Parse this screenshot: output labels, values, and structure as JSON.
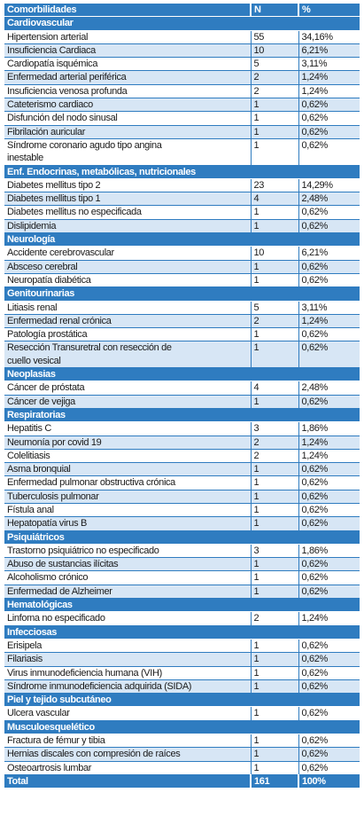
{
  "table": {
    "header": [
      "Comorbilidades",
      "N",
      "%"
    ],
    "sections": [
      {
        "title": "Cardiovascular",
        "rows": [
          [
            "Hipertension arterial",
            "55",
            "34,16%"
          ],
          [
            "Insuficiencia Cardiaca",
            "10",
            "6,21%"
          ],
          [
            "Cardiopatía isquémica",
            "5",
            "3,11%"
          ],
          [
            "Enfermedad arterial periférica",
            "2",
            "1,24%"
          ],
          [
            "Insuficiencia venosa profunda",
            "2",
            "1,24%"
          ],
          [
            "Cateterismo cardiaco",
            "1",
            "0,62%"
          ],
          [
            "Disfunción del nodo sinusal",
            "1",
            "0,62%"
          ],
          [
            "Fibrilación auricular",
            "1",
            "0,62%"
          ],
          [
            "Síndrome coronario agudo tipo angina inestable",
            "1",
            "0,62%"
          ]
        ]
      },
      {
        "title": "Enf. Endocrinas, metabólicas, nutricionales",
        "rows": [
          [
            "Diabetes mellitus tipo 2",
            "23",
            "14,29%"
          ],
          [
            "Diabetes mellitus tipo 1",
            "4",
            "2,48%"
          ],
          [
            "Diabetes mellitus no especificada",
            "1",
            "0,62%"
          ],
          [
            "Dislipidemia",
            "1",
            "0,62%"
          ]
        ]
      },
      {
        "title": "Neurología",
        "rows": [
          [
            "Accidente cerebrovascular",
            "10",
            "6,21%"
          ],
          [
            "Absceso cerebral",
            "1",
            "0,62%"
          ],
          [
            "Neuropatía diabética",
            "1",
            "0,62%"
          ]
        ]
      },
      {
        "title": "Genitourinarias",
        "rows": [
          [
            "Litiasis renal",
            "5",
            "3,11%"
          ],
          [
            "Enfermedad renal crónica",
            "2",
            "1,24%"
          ],
          [
            "Patología prostática",
            "1",
            "0,62%"
          ],
          [
            "Resección Transuretral con resección de cuello vesical",
            "1",
            "0,62%"
          ]
        ]
      },
      {
        "title": "Neoplasias",
        "rows": [
          [
            "Cáncer de próstata",
            "4",
            "2,48%"
          ],
          [
            "Cáncer de vejiga",
            "1",
            "0,62%"
          ]
        ]
      },
      {
        "title": "Respiratorias",
        "rows": [
          [
            "Hepatitis C",
            "3",
            "1,86%"
          ],
          [
            "Neumonía por covid 19",
            "2",
            "1,24%"
          ],
          [
            "Colelitiasis",
            "2",
            "1,24%"
          ],
          [
            "Asma bronquial",
            "1",
            "0,62%"
          ],
          [
            "Enfermedad pulmonar obstructiva crónica",
            "1",
            "0,62%"
          ],
          [
            "Tuberculosis pulmonar",
            "1",
            "0,62%"
          ],
          [
            "Fístula anal",
            "1",
            "0,62%"
          ],
          [
            "Hepatopatía virus B",
            "1",
            "0,62%"
          ]
        ]
      },
      {
        "title": "Psiquiátricos",
        "rows": [
          [
            "Trastorno psiquiátrico no especificado",
            "3",
            "1,86%"
          ],
          [
            "Abuso de sustancias ilícitas",
            "1",
            "0,62%"
          ],
          [
            "Alcoholismo crónico",
            "1",
            "0,62%"
          ],
          [
            "Enfermedad de Alzheimer",
            "1",
            "0,62%"
          ]
        ]
      },
      {
        "title": "Hematológicas",
        "rows": [
          [
            "Linfoma no especificado",
            "2",
            "1,24%"
          ]
        ]
      },
      {
        "title": "Infecciosas",
        "rows": [
          [
            "Erisipela",
            "1",
            "0,62%"
          ],
          [
            "Filariasis",
            "1",
            "0,62%"
          ],
          [
            "Virus inmunodeficiencia humana (VIH)",
            "1",
            "0,62%"
          ],
          [
            "Síndrome inmunodeficiencia adquirida (SIDA)",
            "1",
            "0,62%"
          ]
        ]
      },
      {
        "title": "Piel y tejido subcutáneo",
        "rows": [
          [
            "Ulcera vascular",
            "1",
            "0,62%"
          ]
        ]
      },
      {
        "title": "Musculoesquelético",
        "rows": [
          [
            "Fractura de fémur y tibia",
            "1",
            "0,62%"
          ],
          [
            "Hernias discales con compresión de raíces",
            "1",
            "0,62%"
          ],
          [
            "Osteoartrosis lumbar",
            "1",
            "0,62%"
          ]
        ]
      }
    ],
    "total": [
      "Total",
      "161",
      "100%"
    ]
  }
}
